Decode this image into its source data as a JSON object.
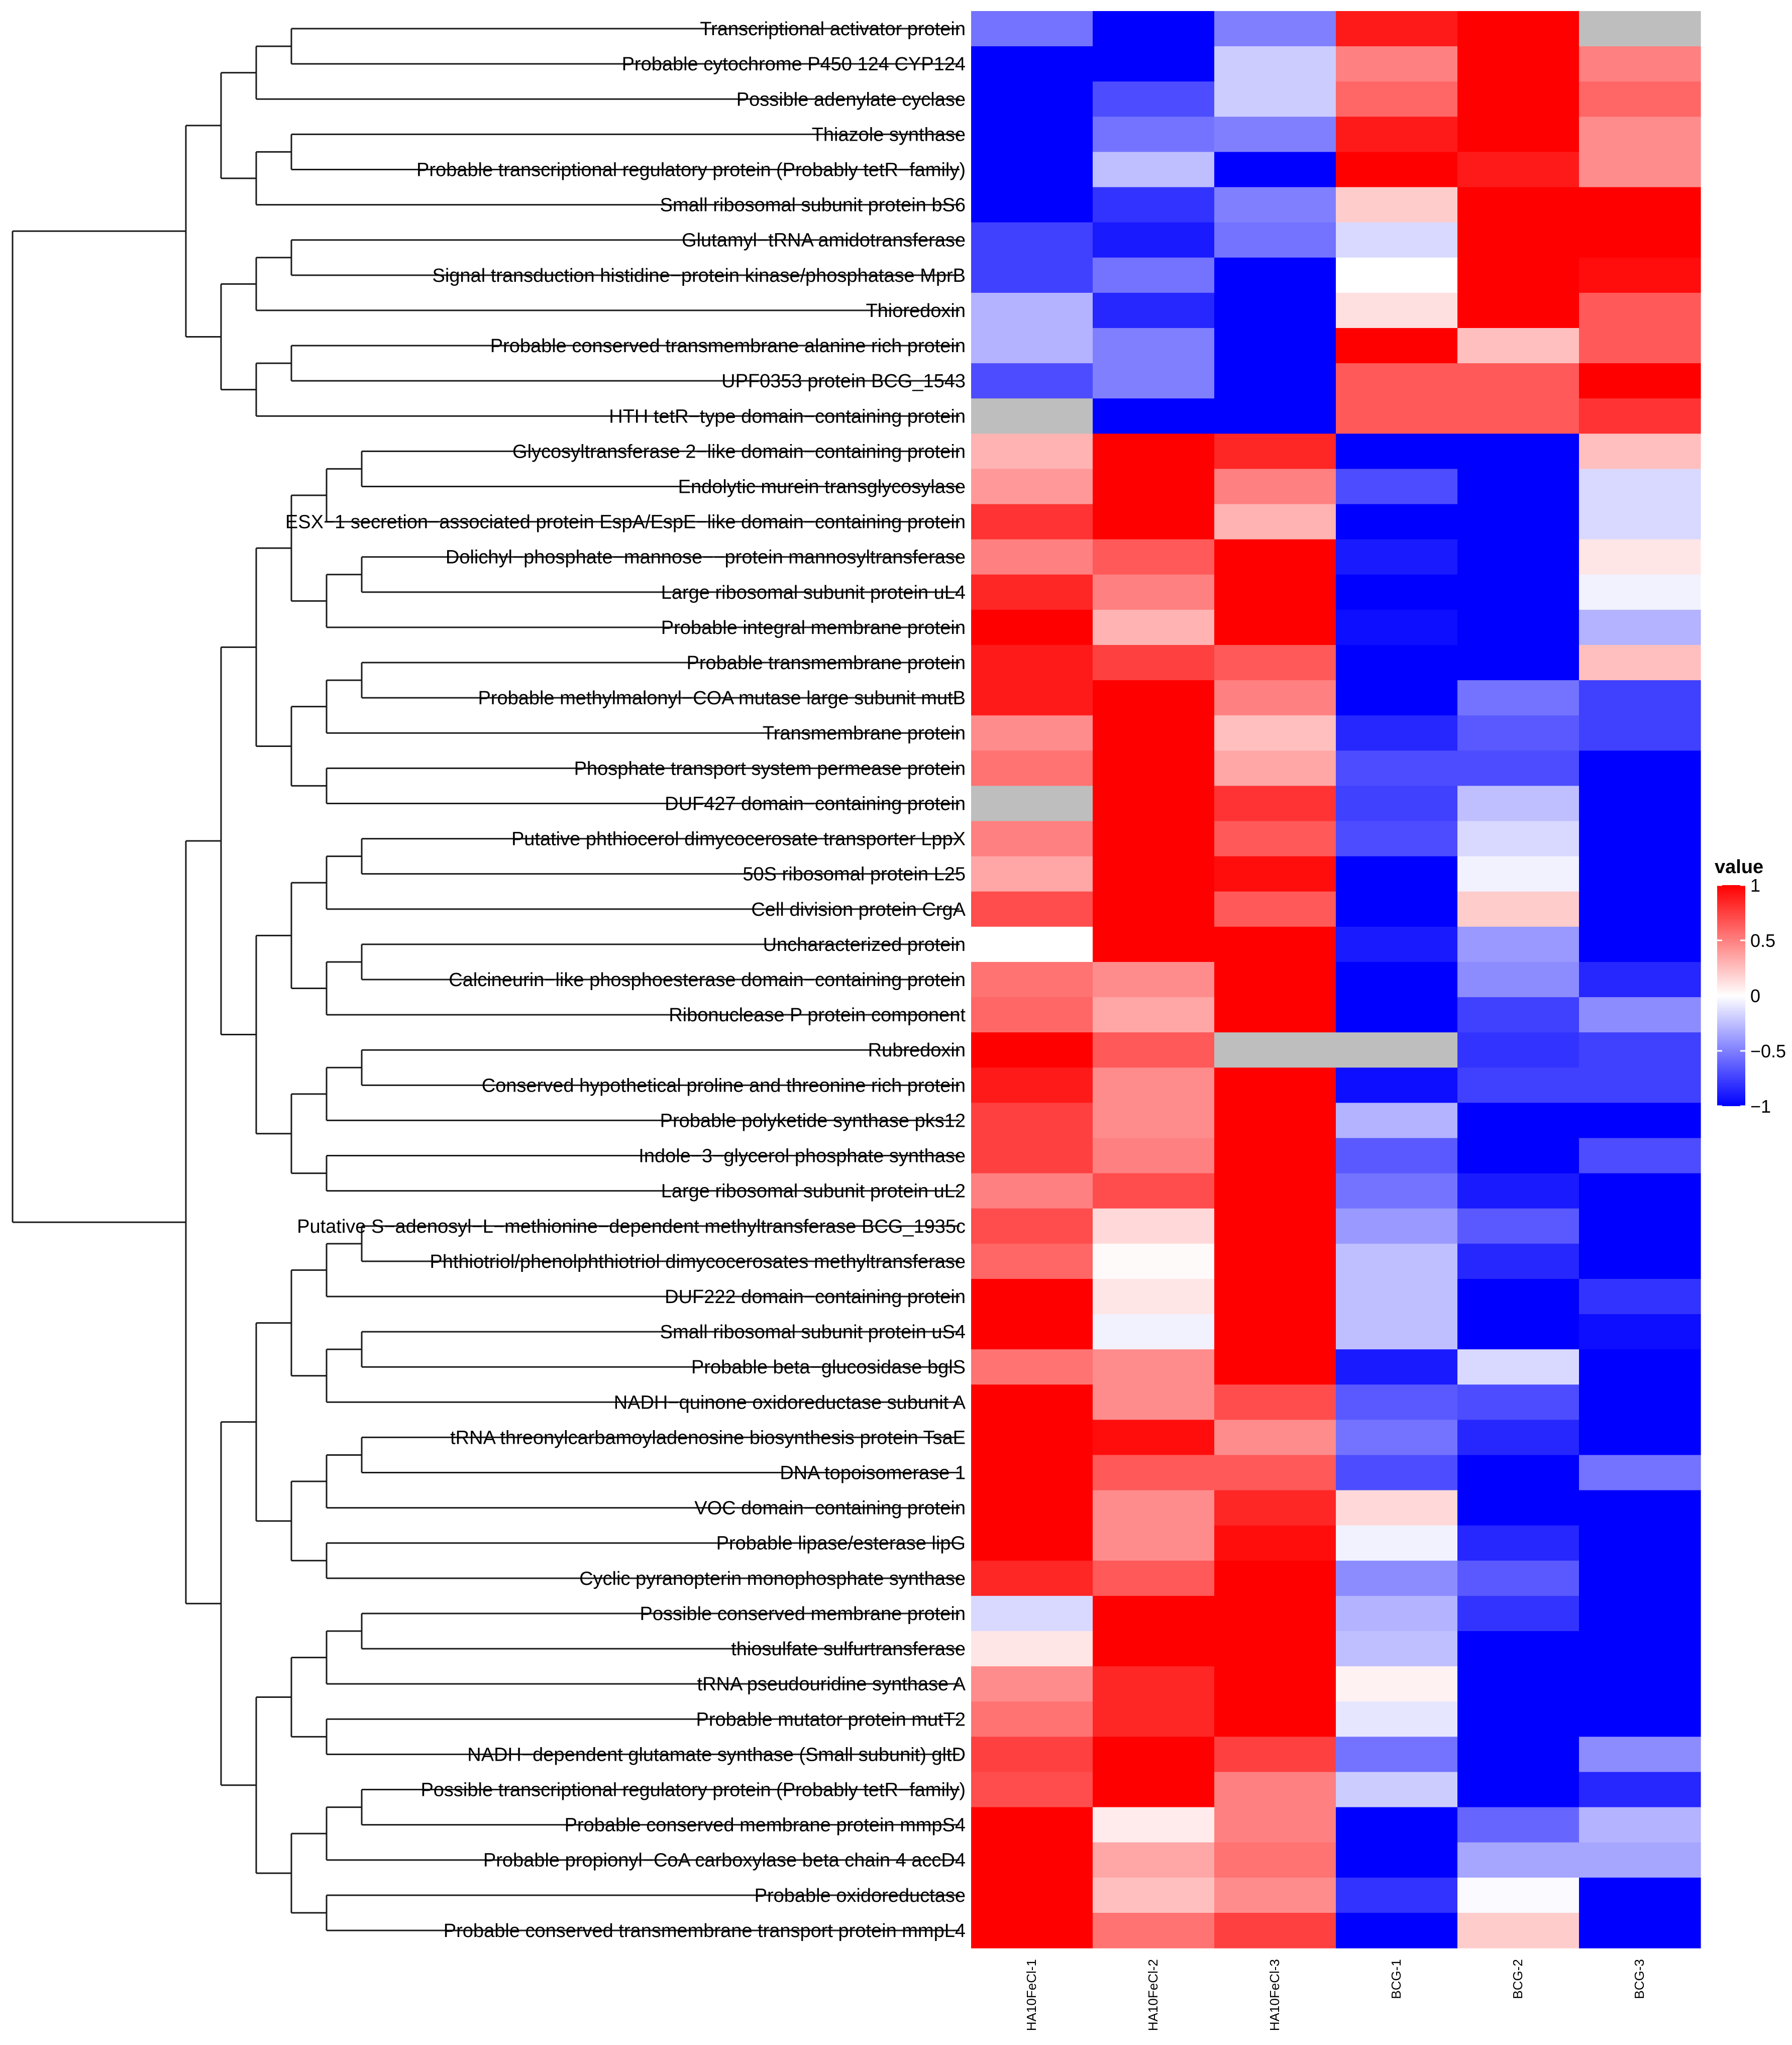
{
  "chart_data": {
    "type": "heatmap",
    "title": "",
    "columns": [
      "HA10FeCl-1",
      "HA10FeCl-2",
      "HA10FeCl-3",
      "BCG-1",
      "BCG-2",
      "BCG-3"
    ],
    "rows": [
      "Transcriptional activator protein",
      "Probable cytochrome P450 124 CYP124",
      "Possible adenylate cyclase",
      "Thiazole synthase",
      "Probable transcriptional regulatory protein (Probably tetR−family)",
      "Small ribosomal subunit protein bS6",
      "Glutamyl−tRNA amidotransferase",
      "Signal transduction histidine−protein kinase/phosphatase MprB",
      "Thioredoxin",
      "Probable conserved transmembrane alanine rich protein",
      "UPF0353 protein BCG_1543",
      "HTH tetR−type domain−containing protein",
      "Glycosyltransferase 2−like domain−containing protein",
      "Endolytic murein transglycosylase",
      "ESX−1 secretion−associated protein EspA/EspE−like domain−containing protein",
      "Dolichyl−phosphate−mannose−−protein mannosyltransferase",
      "Large ribosomal subunit protein uL4",
      "Probable integral membrane protein",
      "Probable transmembrane protein",
      "Probable methylmalonyl−COA mutase large subunit mutB",
      "Transmembrane protein",
      "Phosphate transport system permease protein",
      "DUF427 domain−containing protein",
      "Putative phthiocerol dimycocerosate transporter LppX",
      "50S ribosomal protein L25",
      "Cell division protein CrgA",
      "Uncharacterized protein",
      "Calcineurin−like phosphoesterase domain−containing protein",
      "Ribonuclease P protein component",
      "Rubredoxin",
      "Conserved hypothetical proline and threonine rich protein",
      "Probable polyketide synthase pks12",
      "Indole−3−glycerol phosphate synthase",
      "Large ribosomal subunit protein uL2",
      "Putative S−adenosyl−L−methionine−dependent methyltransferase BCG_1935c",
      "Phthiotriol/phenolphthiotriol dimycocerosates methyltransferase",
      "DUF222 domain−containing protein",
      "Small ribosomal subunit protein uS4",
      "Probable beta−glucosidase bglS",
      "NADH−quinone oxidoreductase subunit A",
      "tRNA threonylcarbamoyladenosine biosynthesis protein TsaE",
      "DNA topoisomerase 1",
      "VOC domain−containing protein",
      "Probable lipase/esterase lipG",
      "Cyclic pyranopterin monophosphate synthase",
      "Possible conserved membrane protein",
      "thiosulfate sulfurtransferase",
      "tRNA pseudouridine synthase A",
      "Probable mutator protein mutT2",
      "NADH−dependent glutamate synthase (Small subunit) gltD",
      "Possible transcriptional regulatory protein (Probably tetR−family)",
      "Probable conserved membrane protein mmpS4",
      "Probable propionyl−CoA carboxylase beta chain 4 accD4",
      "Probable oxidoreductase",
      "Probable conserved transmembrane transport protein mmpL4"
    ],
    "values": [
      [
        -0.55,
        -1,
        -0.5,
        0.9,
        1,
        null
      ],
      [
        -1,
        -1,
        -0.2,
        0.5,
        1,
        0.5
      ],
      [
        -1,
        -0.7,
        -0.2,
        0.6,
        1,
        0.6
      ],
      [
        -1,
        -0.55,
        -0.5,
        0.9,
        1,
        0.45
      ],
      [
        -1,
        -0.25,
        -1,
        1,
        0.9,
        0.45
      ],
      [
        -1,
        -0.8,
        -0.5,
        0.2,
        1,
        1
      ],
      [
        -0.75,
        -0.9,
        -0.55,
        -0.15,
        1,
        1
      ],
      [
        -0.75,
        -0.55,
        -1,
        0,
        1,
        0.95
      ],
      [
        -0.3,
        -0.85,
        -1,
        0.12,
        1,
        0.65
      ],
      [
        -0.3,
        -0.5,
        -1,
        1,
        0.25,
        0.65
      ],
      [
        -0.7,
        -0.5,
        -1,
        0.65,
        0.65,
        1
      ],
      [
        null,
        -1,
        -1,
        0.65,
        0.65,
        0.8
      ],
      [
        0.3,
        1,
        0.85,
        -1,
        -1,
        0.25
      ],
      [
        0.4,
        1,
        0.5,
        -0.7,
        -1,
        -0.15
      ],
      [
        0.8,
        1,
        0.3,
        -1,
        -1,
        -0.15
      ],
      [
        0.5,
        0.65,
        1,
        -0.9,
        -1,
        0.1
      ],
      [
        0.85,
        0.5,
        1,
        -1,
        -1,
        -0.05
      ],
      [
        1,
        0.3,
        1,
        -0.95,
        -1,
        -0.3
      ],
      [
        0.9,
        0.75,
        0.65,
        -1,
        -1,
        0.25
      ],
      [
        0.9,
        1,
        0.5,
        -1,
        -0.55,
        -0.75
      ],
      [
        0.45,
        1,
        0.25,
        -0.85,
        -0.65,
        -0.75
      ],
      [
        0.55,
        1,
        0.35,
        -0.7,
        -0.7,
        -1
      ],
      [
        null,
        1,
        0.8,
        -0.75,
        -0.25,
        -1
      ],
      [
        0.5,
        1,
        0.65,
        -0.7,
        -0.15,
        -1
      ],
      [
        0.35,
        1,
        0.95,
        -1,
        -0.05,
        -1
      ],
      [
        0.7,
        1,
        0.65,
        -1,
        0.2,
        -1
      ],
      [
        0,
        1,
        1,
        -0.9,
        -0.4,
        -1
      ],
      [
        0.55,
        0.45,
        1,
        -1,
        -0.45,
        -0.85
      ],
      [
        0.6,
        0.35,
        1,
        -1,
        -0.75,
        -0.45
      ],
      [
        1,
        0.65,
        null,
        null,
        -0.8,
        -0.75
      ],
      [
        0.9,
        0.45,
        1,
        -0.95,
        -0.75,
        -0.75
      ],
      [
        0.75,
        0.45,
        1,
        -0.3,
        -1,
        -1
      ],
      [
        0.75,
        0.5,
        1,
        -0.65,
        -1,
        -0.7
      ],
      [
        0.5,
        0.7,
        1,
        -0.55,
        -0.9,
        -1
      ],
      [
        0.7,
        0.15,
        1,
        -0.4,
        -0.65,
        -1
      ],
      [
        0.6,
        0.02,
        1,
        -0.25,
        -0.85,
        -1
      ],
      [
        1,
        0.1,
        1,
        -0.25,
        -1,
        -0.8
      ],
      [
        1,
        -0.05,
        1,
        -0.25,
        -1,
        -0.95
      ],
      [
        0.55,
        0.45,
        1,
        -0.9,
        -0.15,
        -1
      ],
      [
        1,
        0.45,
        0.7,
        -0.65,
        -0.7,
        -1
      ],
      [
        1,
        0.95,
        0.45,
        -0.55,
        -0.85,
        -1
      ],
      [
        1,
        0.65,
        0.65,
        -0.7,
        -1,
        -0.55
      ],
      [
        1,
        0.45,
        0.85,
        0.15,
        -1,
        -1
      ],
      [
        1,
        0.45,
        0.95,
        -0.05,
        -0.85,
        -1
      ],
      [
        0.85,
        0.65,
        1,
        -0.45,
        -0.65,
        -1
      ],
      [
        -0.15,
        1,
        1,
        -0.3,
        -0.8,
        -1
      ],
      [
        0.1,
        1,
        1,
        -0.25,
        -1,
        -1
      ],
      [
        0.45,
        0.85,
        1,
        0.05,
        -1,
        -1
      ],
      [
        0.55,
        0.85,
        1,
        -0.1,
        -1,
        -1
      ],
      [
        0.75,
        1,
        0.75,
        -0.55,
        -1,
        -0.45
      ],
      [
        0.7,
        1,
        0.5,
        -0.2,
        -1,
        -0.85
      ],
      [
        1,
        0.08,
        0.5,
        -1,
        -0.6,
        -0.3
      ],
      [
        1,
        0.35,
        0.55,
        -1,
        -0.35,
        -0.35
      ],
      [
        1,
        0.25,
        0.45,
        -0.8,
        -0.02,
        -1
      ],
      [
        1,
        0.55,
        0.75,
        -1,
        0.2,
        -1
      ]
    ],
    "missing_color": "#bebebe",
    "color_scale": {
      "low": "#0000ff",
      "mid": "#ffffff",
      "high": "#ff0000",
      "min": -1,
      "max": 1
    },
    "legend": {
      "title": "value",
      "ticks": [
        {
          "value": 1,
          "label": "1"
        },
        {
          "value": 0.5,
          "label": "0.5"
        },
        {
          "value": 0,
          "label": "0"
        },
        {
          "value": -0.5,
          "label": "−0.5"
        },
        {
          "value": -1,
          "label": "−1"
        }
      ],
      "placement": "right"
    },
    "row_dendrogram": {
      "link": [
        [
          [
            0,
            2
          ],
          [
            1,
            2
          ],
          [
            3,
            3
          ],
          [
            2,
            4
          ],
          [
            5,
            2
          ],
          [
            6,
            2
          ],
          [
            7,
            6
          ],
          [
            8,
            8
          ],
          [
            11,
            2
          ],
          [
            10,
            3
          ],
          [
            9,
            4
          ],
          [
            12,
            10
          ],
          [
            13,
            7
          ],
          [
            14,
            11
          ],
          [
            4,
            13
          ],
          [
            15,
            2
          ],
          [
            16,
            2
          ],
          [
            17,
            17
          ],
          [
            18,
            18
          ],
          [
            19,
            4
          ],
          [
            20,
            4
          ],
          [
            21,
            21
          ],
          [
            22,
            22
          ],
          [
            23,
            23
          ],
          [
            24,
            5
          ],
          [
            25,
            6
          ]
        ],
        [
          [
            27,
            2
          ],
          [
            28,
            2
          ],
          [
            26,
            25
          ],
          [
            29,
            6
          ],
          [
            30,
            3
          ],
          [
            31,
            2
          ],
          [
            32,
            2
          ],
          [
            33,
            2
          ],
          [
            34,
            2
          ],
          [
            35,
            3
          ],
          [
            36,
            2
          ],
          [
            37,
            4
          ],
          [
            38,
            38
          ],
          [
            39,
            2
          ],
          [
            40,
            8
          ],
          [
            41,
            2
          ],
          [
            42,
            42
          ],
          [
            43,
            43
          ],
          [
            45,
            2
          ],
          [
            44,
            3
          ],
          [
            46,
            2
          ],
          [
            47,
            3
          ],
          [
            48,
            48
          ],
          [
            49,
            49
          ],
          [
            50,
            3
          ],
          [
            51,
            4
          ],
          [
            52,
            2
          ],
          [
            53,
            5
          ]
        ]
      ],
      "groups": [
        [
          0,
          11
        ],
        [
          12,
          54
        ]
      ]
    }
  }
}
